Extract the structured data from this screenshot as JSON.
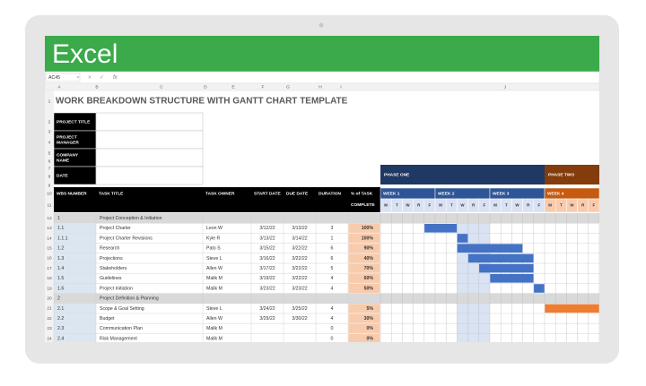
{
  "app": {
    "name": "Excel",
    "name_box": "AC45",
    "fx": "fx"
  },
  "columns": [
    "A",
    "B",
    "C",
    "D",
    "E",
    "F",
    "G",
    "H",
    "I",
    "J"
  ],
  "row_numbers": [
    1,
    2,
    3,
    4,
    5,
    6,
    7,
    8,
    9,
    10,
    11,
    12,
    13,
    14,
    15,
    16,
    17,
    18,
    19,
    20,
    21,
    22,
    23,
    24
  ],
  "title": "WORK BREAKDOWN STRUCTURE WITH GANTT CHART TEMPLATE",
  "project_info": [
    [
      "PROJECT TITLE"
    ],
    [
      "PROJECT",
      "MANAGER"
    ],
    [
      "COMPANY",
      "NAME"
    ],
    [
      "DATE"
    ]
  ],
  "table": {
    "headers": [
      [
        "WBS NUMBER"
      ],
      [
        "TASK TITLE"
      ],
      [
        "TASK OWNER"
      ],
      [
        "START DATE"
      ],
      [
        "DUE DATE"
      ],
      [
        "DURATION"
      ],
      [
        "% of TASK",
        "COMPLETE"
      ]
    ],
    "rows": [
      {
        "wbs": "1",
        "task": "Project Conception & Initiation",
        "summary": true
      },
      {
        "wbs": "1.1",
        "task": "Project Charter",
        "owner": "Leon W",
        "start": "3/12/22",
        "due": "3/13/22",
        "duration": 3,
        "complete": "100%"
      },
      {
        "wbs": "1.1.1",
        "task": "Project Charter Revisions",
        "owner": "Kyle R",
        "start": "3/13/22",
        "due": "3/14/22",
        "duration": 1,
        "complete": "100%"
      },
      {
        "wbs": "1.2",
        "task": "Research",
        "owner": "Pato S",
        "start": "3/15/22",
        "due": "3/22/22",
        "duration": 6,
        "complete": "90%"
      },
      {
        "wbs": "1.3",
        "task": "Projections",
        "owner": "Steve L",
        "start": "3/16/22",
        "due": "3/22/22",
        "duration": 6,
        "complete": "40%"
      },
      {
        "wbs": "1.4",
        "task": "Stakeholders",
        "owner": "Allen W",
        "start": "3/17/22",
        "due": "3/22/22",
        "duration": 5,
        "complete": "70%"
      },
      {
        "wbs": "1.5",
        "task": "Guidelines",
        "owner": "Malik M",
        "start": "3/19/22",
        "due": "3/22/22",
        "duration": 4,
        "complete": "60%"
      },
      {
        "wbs": "1.6",
        "task": "Project Initiation",
        "owner": "Malik M",
        "start": "3/23/22",
        "due": "3/23/22",
        "duration": 4,
        "complete": "50%"
      },
      {
        "wbs": "2",
        "task": "Project Definition & Planning",
        "summary": true
      },
      {
        "wbs": "2.1",
        "task": "Scope & Goal Setting",
        "owner": "Steve L",
        "start": "3/24/22",
        "due": "3/25/22",
        "duration": 4,
        "complete": "5%"
      },
      {
        "wbs": "2.2",
        "task": "Budget",
        "owner": "Allen W",
        "start": "3/29/22",
        "due": "3/30/22",
        "duration": 4,
        "complete": "30%"
      },
      {
        "wbs": "2.3",
        "task": "Communication Plan",
        "owner": "Malik M",
        "duration": 0,
        "complete": "0%"
      },
      {
        "wbs": "2.4",
        "task": "Risk Management",
        "owner": "Malik M",
        "duration": 0,
        "complete": "0%"
      }
    ]
  },
  "gantt": {
    "phases": [
      "PHASE ONE",
      "PHASE TWO"
    ],
    "weeks": [
      "WEEK 1",
      "WEEK 2",
      "WEEK 3",
      "WEEK 4"
    ],
    "days": [
      "M",
      "T",
      "W",
      "R",
      "F"
    ]
  }
}
